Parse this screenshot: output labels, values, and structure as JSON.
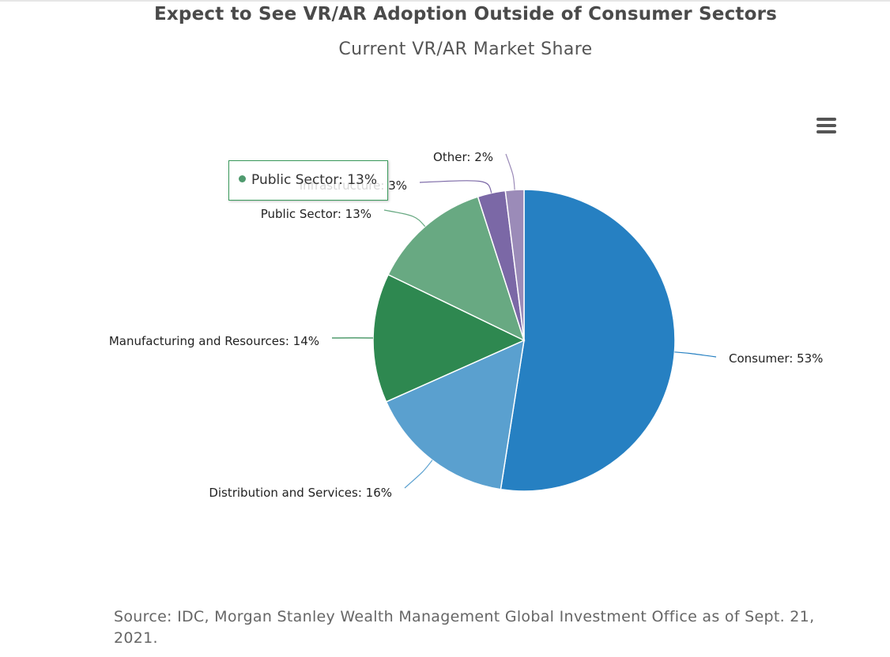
{
  "chart_data": {
    "type": "pie",
    "title": "Expect to See VR/AR Adoption Outside of Consumer Sectors",
    "subtitle": "Current VR/AR Market Share",
    "unit": "%",
    "slices": [
      {
        "name": "Consumer",
        "value": 53,
        "color": "#2680c2",
        "label": "Consumer: 53%"
      },
      {
        "name": "Distribution and Services",
        "value": 16,
        "color": "#5aa0cf",
        "label": "Distribution and Services: 16%"
      },
      {
        "name": "Manufacturing and Resources",
        "value": 14,
        "color": "#2e8850",
        "label": "Manufacturing and Resources: 14%"
      },
      {
        "name": "Public Sector",
        "value": 13,
        "color": "#68a982",
        "label": "Public Sector: 13%"
      },
      {
        "name": "Infrastructure",
        "value": 3,
        "color": "#7b68a6",
        "label": "Infrastructure: 3%"
      },
      {
        "name": "Other",
        "value": 2,
        "color": "#9b8bb8",
        "label": "Other: 2%"
      }
    ],
    "tooltip": {
      "series": "Public Sector",
      "text": "Public Sector: 13%",
      "color": "#4f9a6e"
    }
  },
  "menu": {
    "icon": "hamburger-menu-icon"
  },
  "source": "Source: IDC, Morgan Stanley Wealth Management Global Investment Office as of Sept. 21, 2021."
}
